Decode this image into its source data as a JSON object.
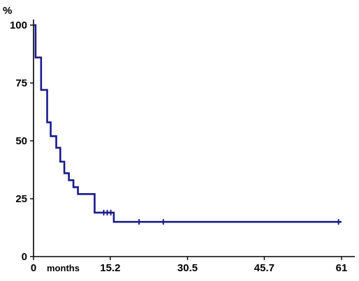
{
  "chart_data": {
    "type": "line",
    "title": "",
    "ylabel": "%",
    "xlabel": "",
    "x_unit_label": "months",
    "xlim": [
      0,
      61
    ],
    "ylim": [
      0,
      100
    ],
    "x_ticks": [
      {
        "value": 0,
        "label": "0"
      },
      {
        "value": 15.2,
        "label": "15.2"
      },
      {
        "value": 30.5,
        "label": "30.5"
      },
      {
        "value": 45.7,
        "label": "45.7"
      },
      {
        "value": 61,
        "label": "61"
      }
    ],
    "y_ticks": [
      {
        "value": 0,
        "label": "0"
      },
      {
        "value": 25,
        "label": "25"
      },
      {
        "value": 50,
        "label": "50"
      },
      {
        "value": 75,
        "label": "75"
      },
      {
        "value": 100,
        "label": "100"
      }
    ],
    "series": [
      {
        "style": "step",
        "color": "#1a1a8c",
        "steps": [
          {
            "x": 0.0,
            "y": 100
          },
          {
            "x": 0.4,
            "y": 86
          },
          {
            "x": 1.5,
            "y": 72
          },
          {
            "x": 2.7,
            "y": 58
          },
          {
            "x": 3.4,
            "y": 52
          },
          {
            "x": 4.5,
            "y": 47
          },
          {
            "x": 5.3,
            "y": 41
          },
          {
            "x": 6.1,
            "y": 36
          },
          {
            "x": 7.0,
            "y": 33
          },
          {
            "x": 7.9,
            "y": 30
          },
          {
            "x": 8.8,
            "y": 27
          },
          {
            "x": 12.1,
            "y": 19
          },
          {
            "x": 15.9,
            "y": 15
          },
          {
            "x": 61.0,
            "y": 15
          }
        ],
        "censored": [
          {
            "x": 13.9,
            "y": 19
          },
          {
            "x": 14.6,
            "y": 19
          },
          {
            "x": 15.3,
            "y": 19
          },
          {
            "x": 20.9,
            "y": 15
          },
          {
            "x": 25.7,
            "y": 15
          },
          {
            "x": 60.4,
            "y": 15
          }
        ]
      }
    ],
    "grid": false,
    "legend": "none"
  }
}
